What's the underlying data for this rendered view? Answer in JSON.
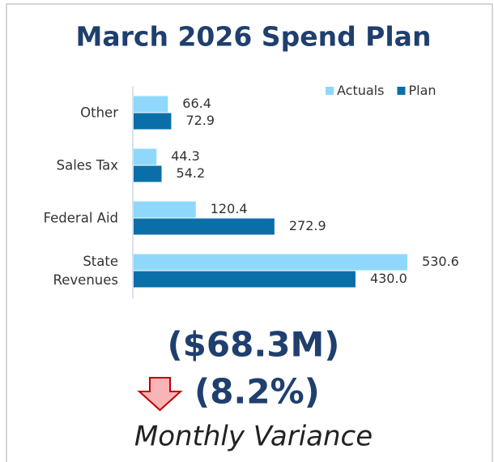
{
  "chart_data": {
    "type": "barh",
    "title": "March 2026 Spend Plan",
    "categories": [
      "Other",
      "Sales Tax",
      "Federal Aid",
      "State Revenues"
    ],
    "series": [
      {
        "name": "Actuals",
        "color": "#8fd8fb",
        "values": [
          66.4,
          44.3,
          120.4,
          530.6
        ],
        "value_labels": [
          "66.4",
          "44.3",
          "120.4",
          "530.6"
        ]
      },
      {
        "name": "Plan",
        "color": "#0a6fa8",
        "values": [
          72.9,
          54.2,
          272.9,
          430
        ],
        "value_labels": [
          "72.9",
          "54.2",
          "272.9",
          "430.0"
        ]
      }
    ],
    "xlim": [
      0,
      620
    ],
    "legend": "top-right"
  },
  "kpi": {
    "value": "($68.3M)",
    "percent": "(8.2%)",
    "caption": "Monthly Variance"
  }
}
